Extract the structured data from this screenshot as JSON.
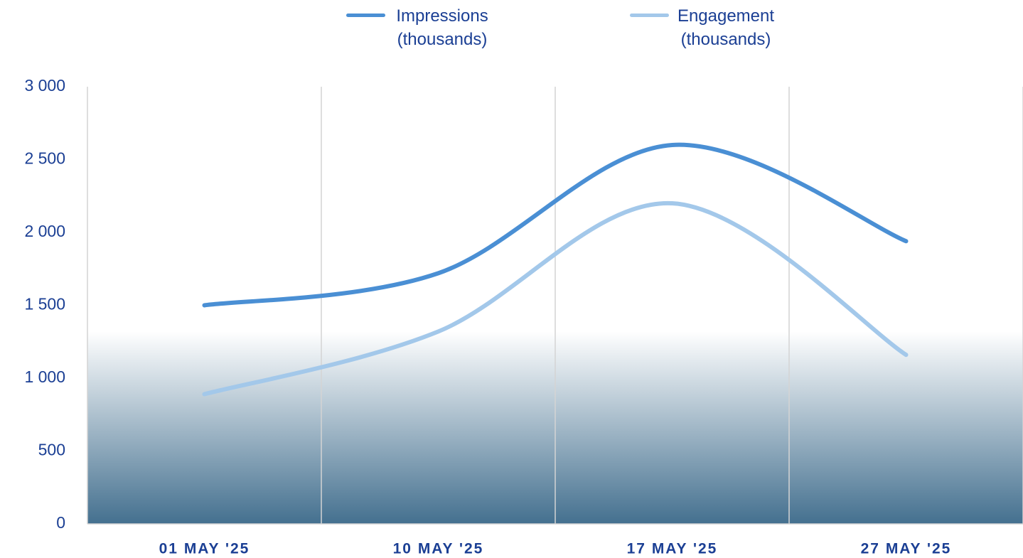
{
  "chart_data": {
    "type": "line",
    "categories": [
      "01 MAY '25",
      "10 MAY '25",
      "17 MAY '25",
      "27 MAY '25"
    ],
    "series": [
      {
        "name": "Impressions (thousands)",
        "color": "#4a8fd4",
        "values": [
          1500,
          1720,
          2600,
          1940
        ]
      },
      {
        "name": "Engagement (thousands)",
        "color": "#a3c8ea",
        "values": [
          890,
          1320,
          2200,
          1160
        ]
      }
    ],
    "ylim": [
      0,
      3000
    ],
    "yticks": [
      0,
      500,
      {
        "value": 1000,
        "label": "1 000"
      },
      {
        "value": 1500,
        "label": "1 500"
      },
      {
        "value": 2000,
        "label": "2 000"
      },
      {
        "value": 2500,
        "label": "2 500"
      },
      {
        "value": 3000,
        "label": "3 000"
      }
    ],
    "smooth": true,
    "legend": "top"
  }
}
